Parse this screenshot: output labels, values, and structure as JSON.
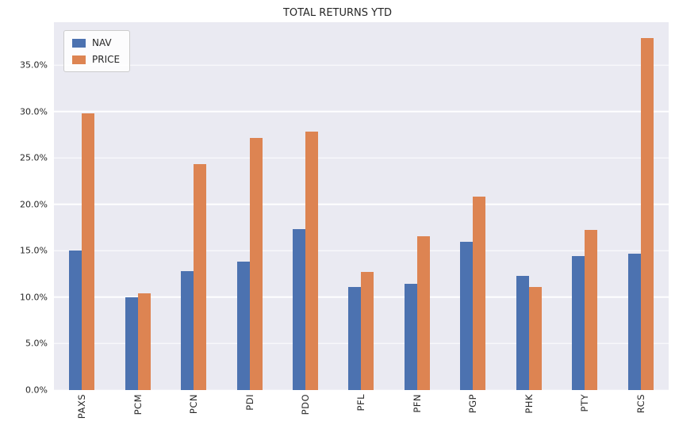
{
  "chart_data": {
    "type": "bar",
    "title": "TOTAL RETURNS YTD",
    "categories": [
      "PAXS",
      "PCM",
      "PCN",
      "PDI",
      "PDO",
      "PFL",
      "PFN",
      "PGP",
      "PHK",
      "PTY",
      "RCS"
    ],
    "series": [
      {
        "name": "NAV",
        "color": "#4c72b0",
        "values": [
          15.0,
          10.0,
          12.8,
          13.8,
          17.3,
          11.1,
          11.4,
          16.0,
          12.3,
          14.4,
          14.7
        ]
      },
      {
        "name": "PRICE",
        "color": "#dd8452",
        "values": [
          29.8,
          10.4,
          24.3,
          27.1,
          27.8,
          12.7,
          16.6,
          20.8,
          11.1,
          17.2,
          37.9
        ]
      }
    ],
    "ylim": [
      0,
      39.6
    ],
    "yticks": [
      0,
      5,
      10,
      15,
      20,
      25,
      30,
      35
    ],
    "ytick_labels": [
      "0.0%",
      "5.0%",
      "10.0%",
      "15.0%",
      "20.0%",
      "25.0%",
      "30.0%",
      "35.0%"
    ],
    "grid": true,
    "legend_position": "upper-left",
    "plot_bg": "#eaeaf2",
    "fig_bg": "#ffffff",
    "gridline_color": "#ffffff",
    "xlabel": "",
    "ylabel": ""
  }
}
